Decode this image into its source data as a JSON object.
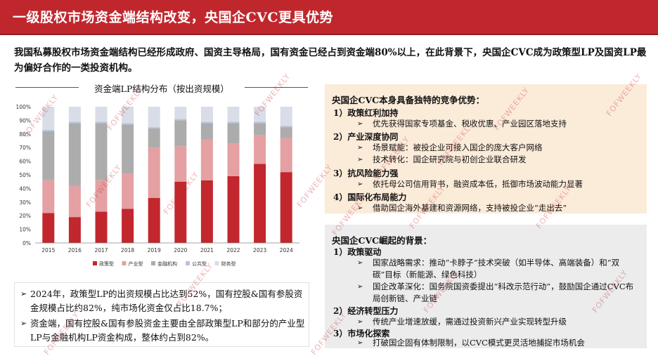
{
  "header": {
    "title": "一级股权市场资金端结构改变，央国企CVC更具优势"
  },
  "intro": "我国私募股权市场资金端结构已经形成政府、国资主导格局，国有资金已经占到资金端80%以上，在此背景下，央国企CVC成为政策型LP及国资LP最为偏好合作的一类投资机构。",
  "chart_data": {
    "type": "bar",
    "stacked": true,
    "title": "资金端LP结构分布（按出资规模）",
    "categories": [
      "2015",
      "2016",
      "2017",
      "2018",
      "2019",
      "2020",
      "2021",
      "2022",
      "2023",
      "2024"
    ],
    "ylim": [
      0,
      100
    ],
    "yticks": [
      "0%",
      "10%",
      "20%",
      "30%",
      "40%",
      "50%",
      "60%",
      "70%",
      "80%",
      "90%",
      "100%"
    ],
    "grid": false,
    "legend_position": "bottom",
    "series": [
      {
        "name": "政策型",
        "color": "#c1272d",
        "values": [
          22,
          19,
          23,
          25,
          33,
          45,
          46,
          49,
          58,
          52
        ]
      },
      {
        "name": "产业型",
        "color": "#e4a0a2",
        "values": [
          24,
          23,
          23,
          26,
          37,
          26,
          30,
          24,
          21,
          25
        ]
      },
      {
        "name": "金融机构",
        "color": "#acacac",
        "values": [
          36,
          46,
          42,
          36,
          14,
          19,
          12,
          15,
          9,
          8
        ]
      },
      {
        "name": "公共型",
        "color": "#b8c4d8",
        "values": [
          1,
          1,
          1,
          1,
          1,
          1,
          1,
          1,
          1,
          1
        ]
      },
      {
        "name": "财务型",
        "color": "#d8dde8",
        "values": [
          17,
          11,
          11,
          12,
          15,
          9,
          11,
          11,
          11,
          14
        ]
      }
    ]
  },
  "bullets": [
    "2024年，政策型LP的出资规模占比达到52%，国有控股&国有参股资金规模占比约82%，纯市场化资金仅占比18.7%；",
    "资金端，国有控股&国有参股资金主要由全部政策型LP和部分的产业型LP与金融机构LP资金构成，整体约占到82%。"
  ],
  "advantages": {
    "title": "央国企CVC本身具备独特的竞争优势：",
    "sections": [
      {
        "label": "1）政策红利加持",
        "items": [
          "优先获得国家专项基金、税收优惠、产业园区落地支持"
        ]
      },
      {
        "label": "2）产业深度协同",
        "items": [
          "场景赋能：被投企业可接入国企的庞大客户网络",
          "技术转化：国企研究院与初创企业联合研发"
        ]
      },
      {
        "label": "3）抗风险能力强",
        "items": [
          "依托母公司信用背书，融资成本低，抵御市场波动能力显著"
        ]
      },
      {
        "label": "4）国际化布局能力",
        "items": [
          "借助国企海外基建和资源网络，支持被投企业“走出去”"
        ]
      }
    ]
  },
  "background": {
    "title": "央国企CVC崛起的背景：",
    "sections": [
      {
        "label": "1）政策驱动",
        "items": [
          "国家战略需求：推动“卡脖子”技术突破（如半导体、高端装备）和“双碳”目标（新能源、绿色科技）",
          "国企改革深化：国务院国资委提出“科改示范行动”，鼓励国企通过CVC布局创新链、产业链"
        ]
      },
      {
        "label": "2）经济转型压力",
        "items": [
          "传统产业增速放缓，需通过投资新兴产业实现转型升级"
        ]
      },
      {
        "label": "3）市场化探索",
        "items": [
          "打破国企固有体制限制，以CVC模式更灵活地捕捉市场机会"
        ]
      }
    ]
  },
  "watermark": "FOFWEEKLY",
  "icons": {
    "bullet": "diamond-bullet-icon",
    "arrow": "arrow-right-icon"
  }
}
